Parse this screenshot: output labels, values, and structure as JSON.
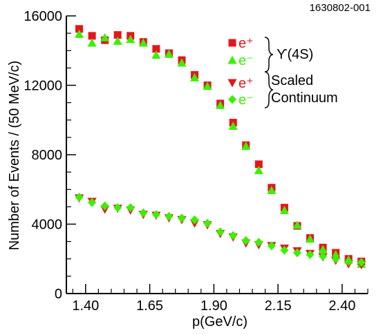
{
  "figure_id": "1630802-001",
  "colors": {
    "red": "#e8141c",
    "green": "#3cf000",
    "axis": "#000000"
  },
  "chart_data": {
    "type": "scatter",
    "xlabel": "p(GeV/c)",
    "ylabel": "Number of Events / (50 MeV/c)",
    "xlim": [
      1.325,
      2.5
    ],
    "ylim": [
      0,
      16000
    ],
    "xticks": [
      1.4,
      1.65,
      1.9,
      2.15,
      2.4
    ],
    "xtick_labels": [
      "1.40",
      "1.65",
      "1.90",
      "2.15",
      "2.40"
    ],
    "yticks": [
      0,
      4000,
      8000,
      12000,
      16000
    ],
    "ytick_labels": [
      "0",
      "4000",
      "8000",
      "12000",
      "16000"
    ],
    "legend": {
      "groups": [
        {
          "label": "ϒ(4S)",
          "entries": [
            {
              "label": "e⁺"
            },
            {
              "label": "e⁻"
            }
          ]
        },
        {
          "label": "Scaled",
          "label2": "Continuum",
          "entries": [
            {
              "label": "e⁺"
            },
            {
              "label": "e⁻"
            }
          ]
        }
      ]
    },
    "x": [
      1.375,
      1.425,
      1.475,
      1.525,
      1.575,
      1.625,
      1.675,
      1.725,
      1.775,
      1.825,
      1.875,
      1.925,
      1.975,
      2.025,
      2.075,
      2.125,
      2.175,
      2.225,
      2.275,
      2.325,
      2.375,
      2.425,
      2.475
    ],
    "series": [
      {
        "name": "ϒ(4S) e⁺",
        "marker": "square",
        "color": "#e8141c",
        "values": [
          15250,
          14850,
          14600,
          14900,
          14850,
          14500,
          14100,
          13850,
          13450,
          12600,
          12000,
          10950,
          9850,
          8550,
          7450,
          6100,
          4950,
          3900,
          3200,
          2650,
          2350,
          2000,
          1850
        ]
      },
      {
        "name": "ϒ(4S) e⁻",
        "marker": "triangle-up",
        "color": "#3cf000",
        "values": [
          14950,
          14450,
          14750,
          14550,
          14650,
          14450,
          13750,
          13800,
          13300,
          12450,
          11950,
          10850,
          9650,
          8500,
          7100,
          5950,
          4800,
          3950,
          3150,
          2550,
          2250,
          1950,
          1700
        ]
      },
      {
        "name": "Continuum e⁺",
        "marker": "triangle-down",
        "color": "#e8141c",
        "values": [
          5500,
          5300,
          4850,
          4900,
          4800,
          4550,
          4500,
          4350,
          4250,
          4050,
          3950,
          3450,
          3250,
          2900,
          2800,
          2750,
          2600,
          2450,
          2300,
          2100,
          1900,
          1700,
          1650
        ]
      },
      {
        "name": "Continuum e⁻",
        "marker": "diamond",
        "color": "#3cf000",
        "values": [
          5550,
          5250,
          5050,
          4950,
          4950,
          4650,
          4550,
          4450,
          4350,
          4250,
          4050,
          3550,
          3350,
          3050,
          2950,
          2750,
          2500,
          2350,
          2250,
          2150,
          2000,
          1850,
          1800
        ]
      }
    ]
  }
}
